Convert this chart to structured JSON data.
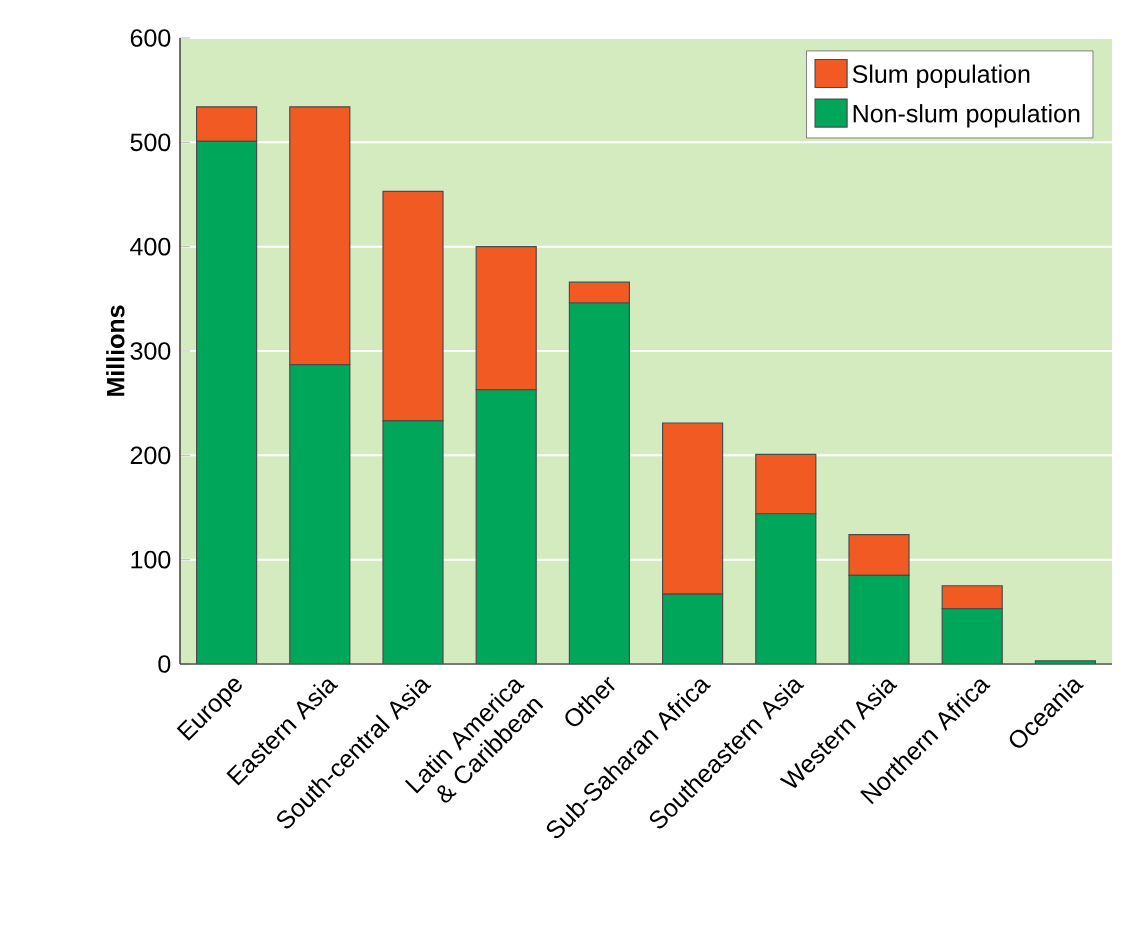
{
  "chart_data": {
    "type": "bar",
    "stacked": true,
    "ylabel": "Millions",
    "categories": [
      "Europe",
      "Eastern Asia",
      "South-central Asia",
      "Latin America & Caribbean",
      "Other",
      "Sub-Saharan Africa",
      "Southeastern Asia",
      "Western Asia",
      "Northern Africa",
      "Oceania"
    ],
    "series": [
      {
        "name": "Non-slum population",
        "color": "#00a65a",
        "values": [
          501,
          287,
          233,
          263,
          346,
          67,
          144,
          85,
          53,
          3
        ]
      },
      {
        "name": "Slum population",
        "color": "#f15a22",
        "values": [
          33,
          247,
          220,
          137,
          20,
          164,
          57,
          39,
          22,
          null
        ]
      }
    ],
    "ylim": [
      0,
      600
    ],
    "yticks": [
      0,
      100,
      200,
      300,
      400,
      500,
      600
    ],
    "grid": "y",
    "legend": "top right"
  }
}
